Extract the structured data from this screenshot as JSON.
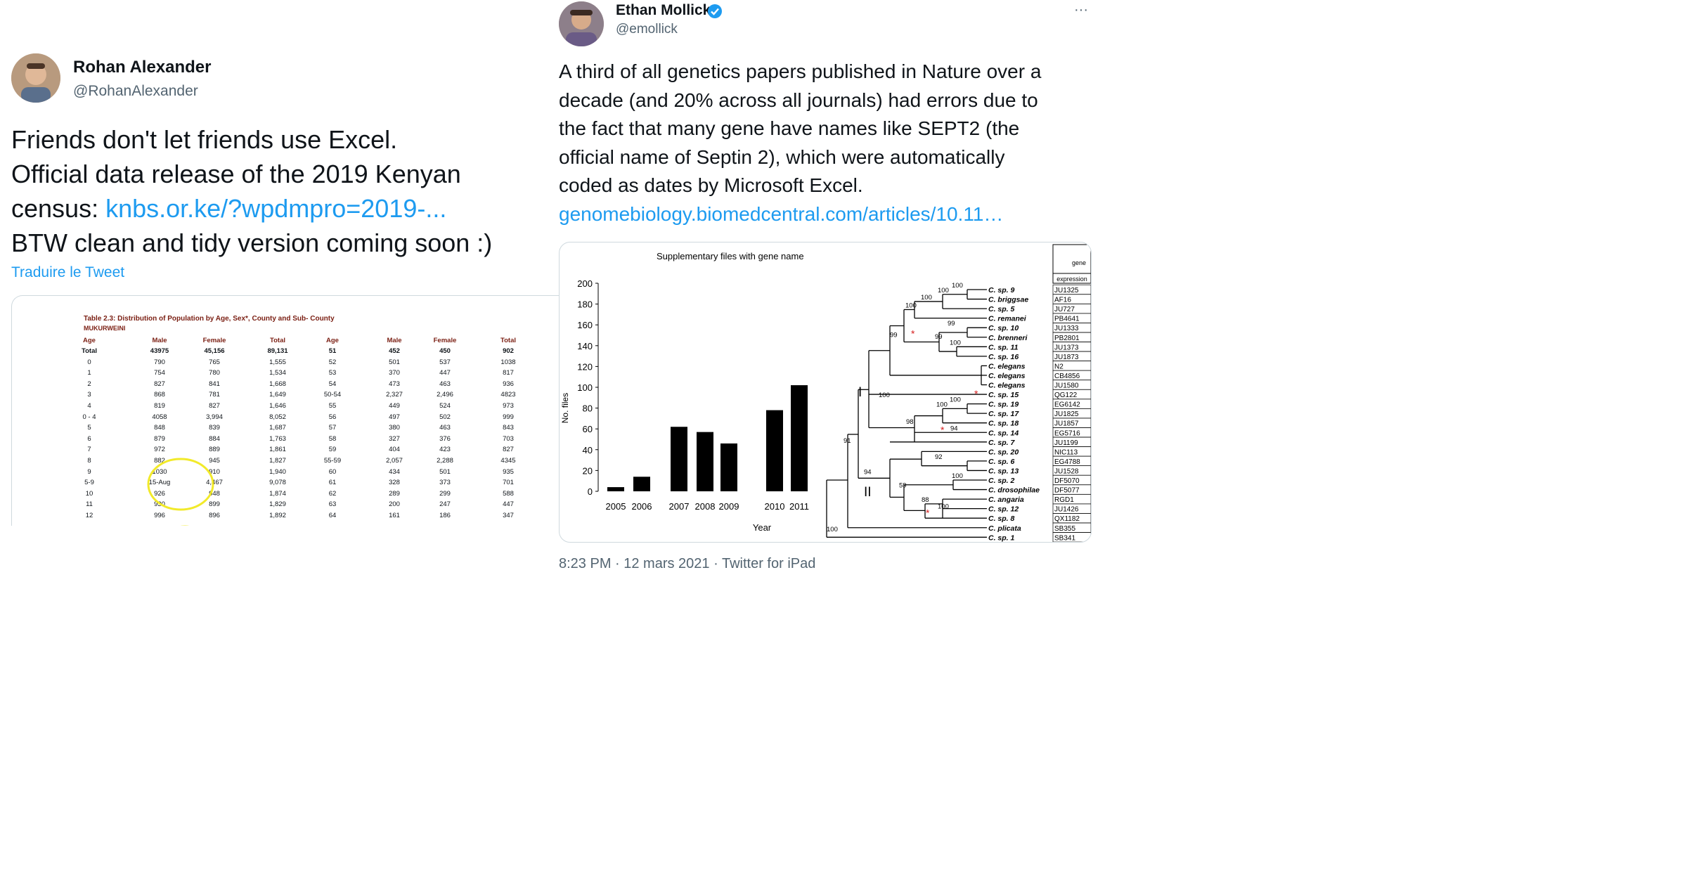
{
  "left_tweet": {
    "author_name": "Rohan Alexander",
    "author_handle": "@RohanAlexander",
    "text_lines": [
      "Friends don't let friends use Excel.",
      "Official data release of the 2019 Kenyan"
    ],
    "text_line3_prefix": "census: ",
    "link_text": "knbs.or.ke/?wpdmpro=2019-...",
    "text_line4": "BTW clean and tidy version coming soon :)",
    "translate_label": "Traduire le Tweet",
    "table": {
      "title": "Table 2.3: Distribution of Population by Age, Sex*, County and Sub- County",
      "subtitle": "MUKURWEINI",
      "headers": [
        "Age",
        "Male",
        "Female",
        "Total",
        "Age",
        "Male",
        "Female",
        "Total"
      ],
      "rows": [
        [
          "Total",
          "43975",
          "45,156",
          "89,131",
          "51",
          "452",
          "450",
          "902"
        ],
        [
          "0",
          "790",
          "765",
          "1,555",
          "52",
          "501",
          "537",
          "1038"
        ],
        [
          "1",
          "754",
          "780",
          "1,534",
          "53",
          "370",
          "447",
          "817"
        ],
        [
          "2",
          "827",
          "841",
          "1,668",
          "54",
          "473",
          "463",
          "936"
        ],
        [
          "3",
          "868",
          "781",
          "1,649",
          "50-54",
          "2,327",
          "2,496",
          "4823"
        ],
        [
          "4",
          "819",
          "827",
          "1,646",
          "55",
          "449",
          "524",
          "973"
        ],
        [
          "0 - 4",
          "4058",
          "3,994",
          "8,052",
          "56",
          "497",
          "502",
          "999"
        ],
        [
          "5",
          "848",
          "839",
          "1,687",
          "57",
          "380",
          "463",
          "843"
        ],
        [
          "6",
          "879",
          "884",
          "1,763",
          "58",
          "327",
          "376",
          "703"
        ],
        [
          "7",
          "972",
          "889",
          "1,861",
          "59",
          "404",
          "423",
          "827"
        ],
        [
          "8",
          "882",
          "945",
          "1,827",
          "55-59",
          "2,057",
          "2,288",
          "4345"
        ],
        [
          "9",
          "1030",
          "910",
          "1,940",
          "60",
          "434",
          "501",
          "935"
        ],
        [
          "5-9",
          "15-Aug",
          "4,467",
          "9,078",
          "61",
          "328",
          "373",
          "701"
        ],
        [
          "10",
          "926",
          "948",
          "1,874",
          "62",
          "289",
          "299",
          "588"
        ],
        [
          "11",
          "930",
          "899",
          "1,829",
          "63",
          "200",
          "247",
          "447"
        ],
        [
          "12",
          "996",
          "896",
          "1,892",
          "64",
          "161",
          "186",
          "347"
        ]
      ],
      "highlight_color": "#f2ea2a"
    }
  },
  "right_tweet": {
    "author_name": "Ethan Mollick",
    "author_handle": "@emollick",
    "verified_icon": "verified-badge-icon",
    "more_label": "···",
    "text_lines": [
      "A third of all genetics papers published in Nature over a",
      "decade (and 20% across all journals) had errors due to",
      "the fact that many gene have names like SEPT2 (the",
      "official name of Septin 2), which were automatically",
      "coded as dates by Microsoft Excel."
    ],
    "link_text": "genomebiology.biomedcentral.com/articles/10.11…",
    "timestamp": "8:23 PM · 12 mars 2021 · Twitter for iPad",
    "figure": {
      "tree_header_top": "gene",
      "tree_header_bottom": "expression",
      "clade_labels": [
        "I",
        "II"
      ],
      "species": [
        [
          "C. sp. 9",
          "JU1325"
        ],
        [
          "C. briggsae",
          "AF16"
        ],
        [
          "C. sp. 5",
          "JU727"
        ],
        [
          "C. remanei",
          "PB4641"
        ],
        [
          "C. sp. 10",
          "JU1333"
        ],
        [
          "C. brenneri",
          "PB2801"
        ],
        [
          "C. sp. 11",
          "JU1373"
        ],
        [
          "C. sp. 16",
          "JU1873"
        ],
        [
          "C. elegans",
          "N2"
        ],
        [
          "C. elegans",
          "CB4856"
        ],
        [
          "C. elegans",
          "JU1580"
        ],
        [
          "C. sp. 15",
          "QG122"
        ],
        [
          "C. sp. 19",
          "EG6142"
        ],
        [
          "C. sp. 17",
          "JU1825"
        ],
        [
          "C. sp. 18",
          "JU1857"
        ],
        [
          "C. sp. 14",
          "EG5716"
        ],
        [
          "C. sp. 7",
          "JU1199"
        ],
        [
          "C. sp. 20",
          "NIC113"
        ],
        [
          "C. sp. 6",
          "EG4788"
        ],
        [
          "C. sp. 13",
          "JU1528"
        ],
        [
          "C. sp. 2",
          "DF5070"
        ],
        [
          "C. drosophilae",
          "DF5077"
        ],
        [
          "C. angaria",
          "RGD1"
        ],
        [
          "C. sp. 12",
          "JU1426"
        ],
        [
          "C. sp. 8",
          "QX1182"
        ],
        [
          "C. plicata",
          "SB355"
        ],
        [
          "C. sp. 1",
          "SB341"
        ]
      ],
      "bootstrap_labels": [
        "100",
        "100",
        "100",
        "100",
        "99",
        "99",
        "99",
        "100",
        "100",
        "100",
        "100",
        "98",
        "94",
        "91",
        "94",
        "92",
        "59",
        "100",
        "88",
        "100",
        "100"
      ]
    }
  },
  "chart_data": {
    "type": "bar",
    "title": "Supplementary files with gene name",
    "xlabel": "Year",
    "ylabel": "No. files",
    "categories": [
      "2005",
      "2006",
      "2007",
      "2008",
      "2009",
      "2010",
      "2011"
    ],
    "values": [
      4,
      14,
      62,
      57,
      46,
      78,
      102
    ],
    "ylim": [
      0,
      200
    ],
    "yticks": [
      "0",
      "20",
      "40",
      "60",
      "80",
      "100",
      "120",
      "140",
      "160",
      "180",
      "200"
    ]
  }
}
